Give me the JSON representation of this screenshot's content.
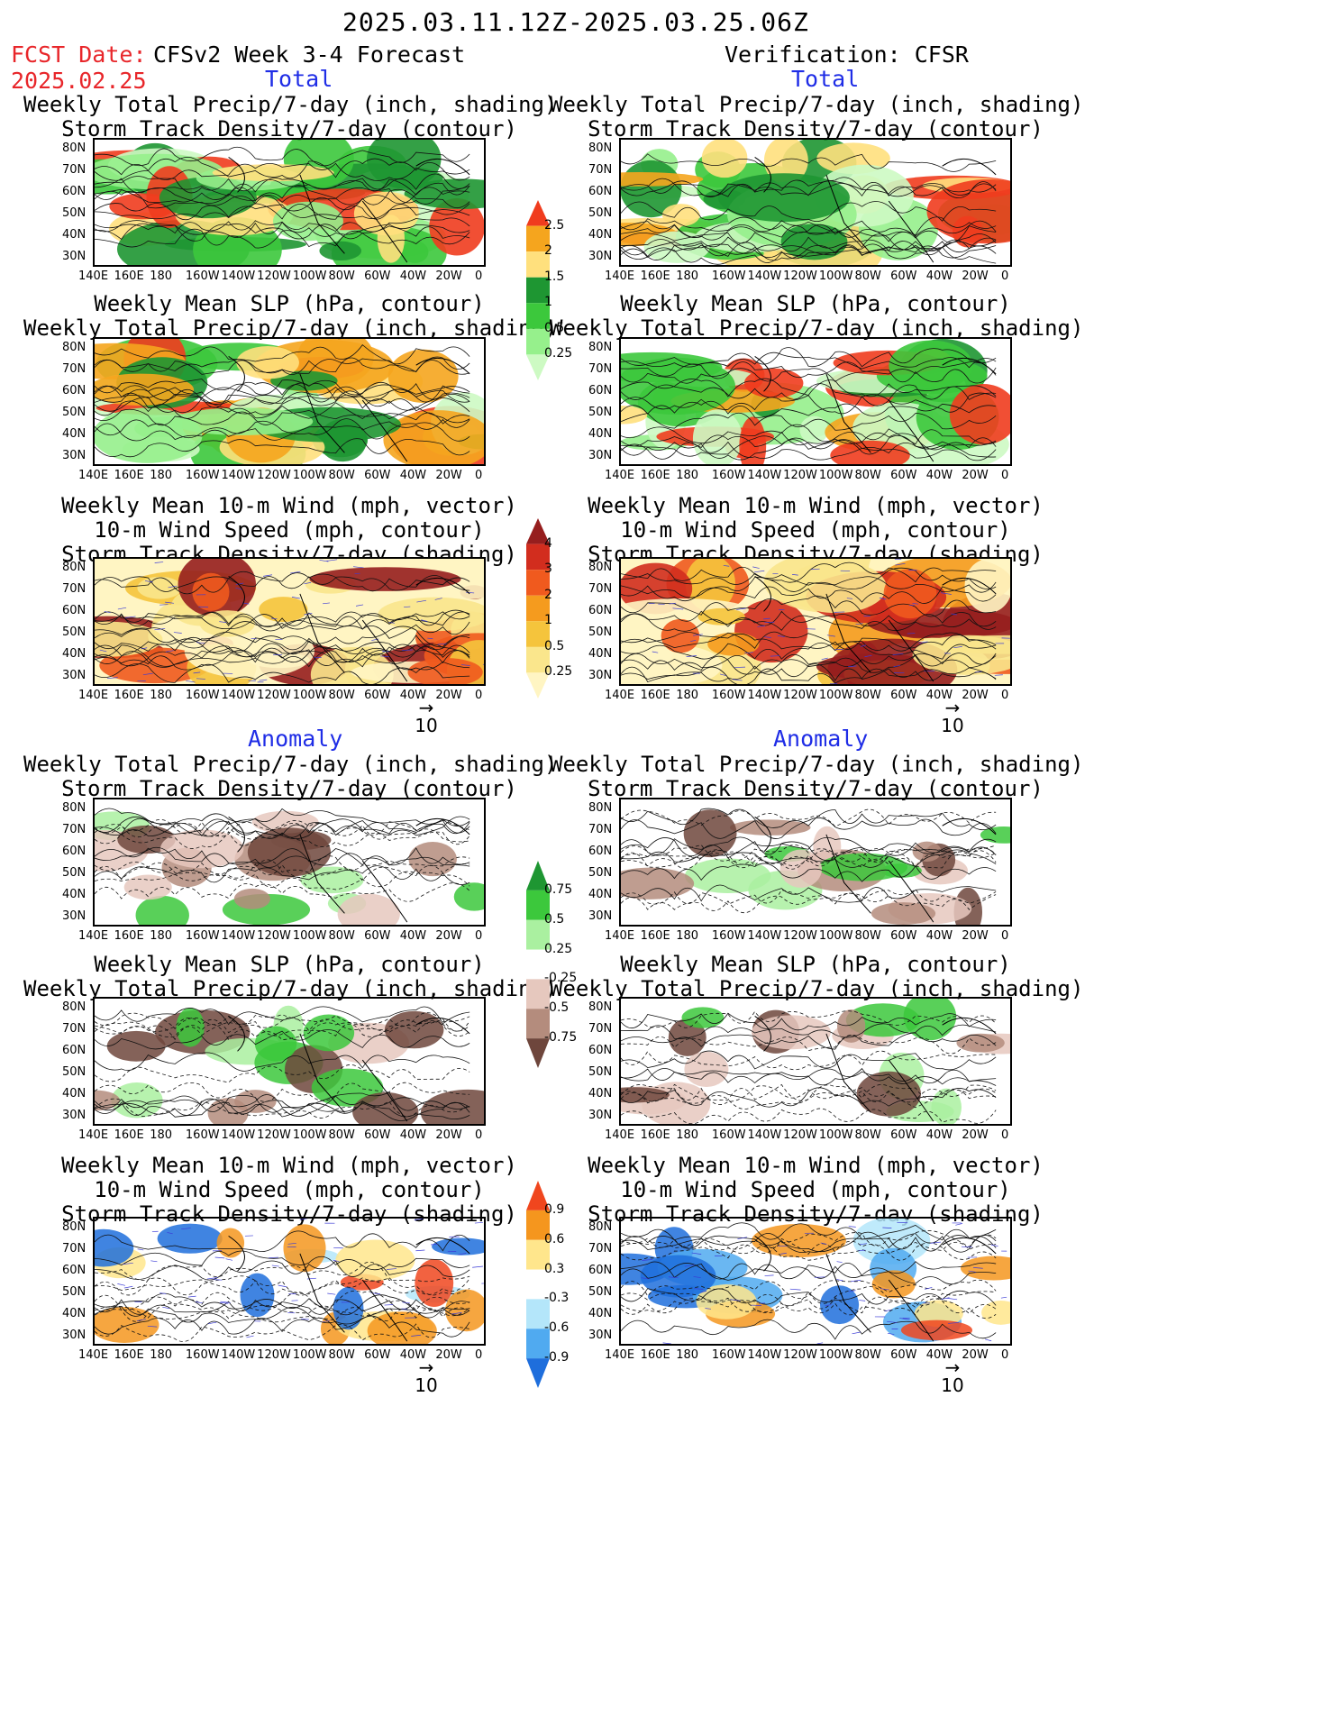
{
  "header": {
    "period": "2025.03.11.12Z-2025.03.25.06Z",
    "fcst_label": "FCST Date:",
    "fcst_date": "2025.02.25",
    "left_title": "CFSv2 Week 3-4 Forecast",
    "right_title": "Verification: CFSR"
  },
  "sections": {
    "total": "Total",
    "anomaly": "Anomaly"
  },
  "panel_titles": {
    "precip_storm": [
      "Weekly Total Precip/7-day (inch, shading)",
      "Storm Track Density/7-day (contour)"
    ],
    "slp_precip": [
      "Weekly Mean SLP (hPa, contour)",
      "Weekly Total Precip/7-day (inch, shading)"
    ],
    "wind_storm": [
      "Weekly Mean 10-m Wind (mph, vector)",
      "10-m Wind Speed (mph, contour)",
      "Storm Track Density/7-day (shading)"
    ]
  },
  "axes": {
    "lat_labels": [
      "80N",
      "70N",
      "60N",
      "50N",
      "40N",
      "30N"
    ],
    "lon_labels": [
      "140E",
      "160E",
      "180",
      "160W",
      "140W",
      "120W",
      "100W",
      "80W",
      "60W",
      "40W",
      "20W",
      "0"
    ]
  },
  "vector_scale": "10",
  "colorbars": {
    "precip_total": {
      "labels": [
        "2.5",
        "2",
        "1.5",
        "1",
        "0.5",
        "0.25"
      ],
      "colors": [
        "#f03c1e",
        "#f5a51e",
        "#ffe07d",
        "#1e9632",
        "#3cc83c",
        "#96f08c",
        "#cdfac3"
      ]
    },
    "storm_total": {
      "labels": [
        "4",
        "3",
        "2",
        "1",
        "0.5",
        "0.25"
      ],
      "colors": [
        "#961e1e",
        "#d22d1e",
        "#f05a1e",
        "#f59b1e",
        "#f5c43c",
        "#fae68c",
        "#fff5c3"
      ]
    },
    "precip_anom": {
      "labels": [
        "0.75",
        "0.5",
        "0.25",
        "-0.25",
        "-0.5",
        "-0.75"
      ],
      "colors": [
        "#1e9632",
        "#3cc83c",
        "#aaf0a0",
        "#ffffff",
        "#e6c8be",
        "#b48c7d",
        "#6e463c"
      ]
    },
    "storm_anom": {
      "labels": [
        "0.9",
        "0.6",
        "0.3",
        "-0.3",
        "-0.6",
        "-0.9"
      ],
      "colors": [
        "#f0461e",
        "#f5961e",
        "#ffe68c",
        "#ffffff",
        "#b4e6fa",
        "#50aaf0",
        "#1e6edc"
      ]
    }
  },
  "colors": {
    "date_red": "#e8262a",
    "section_blue": "#1f2de6"
  }
}
